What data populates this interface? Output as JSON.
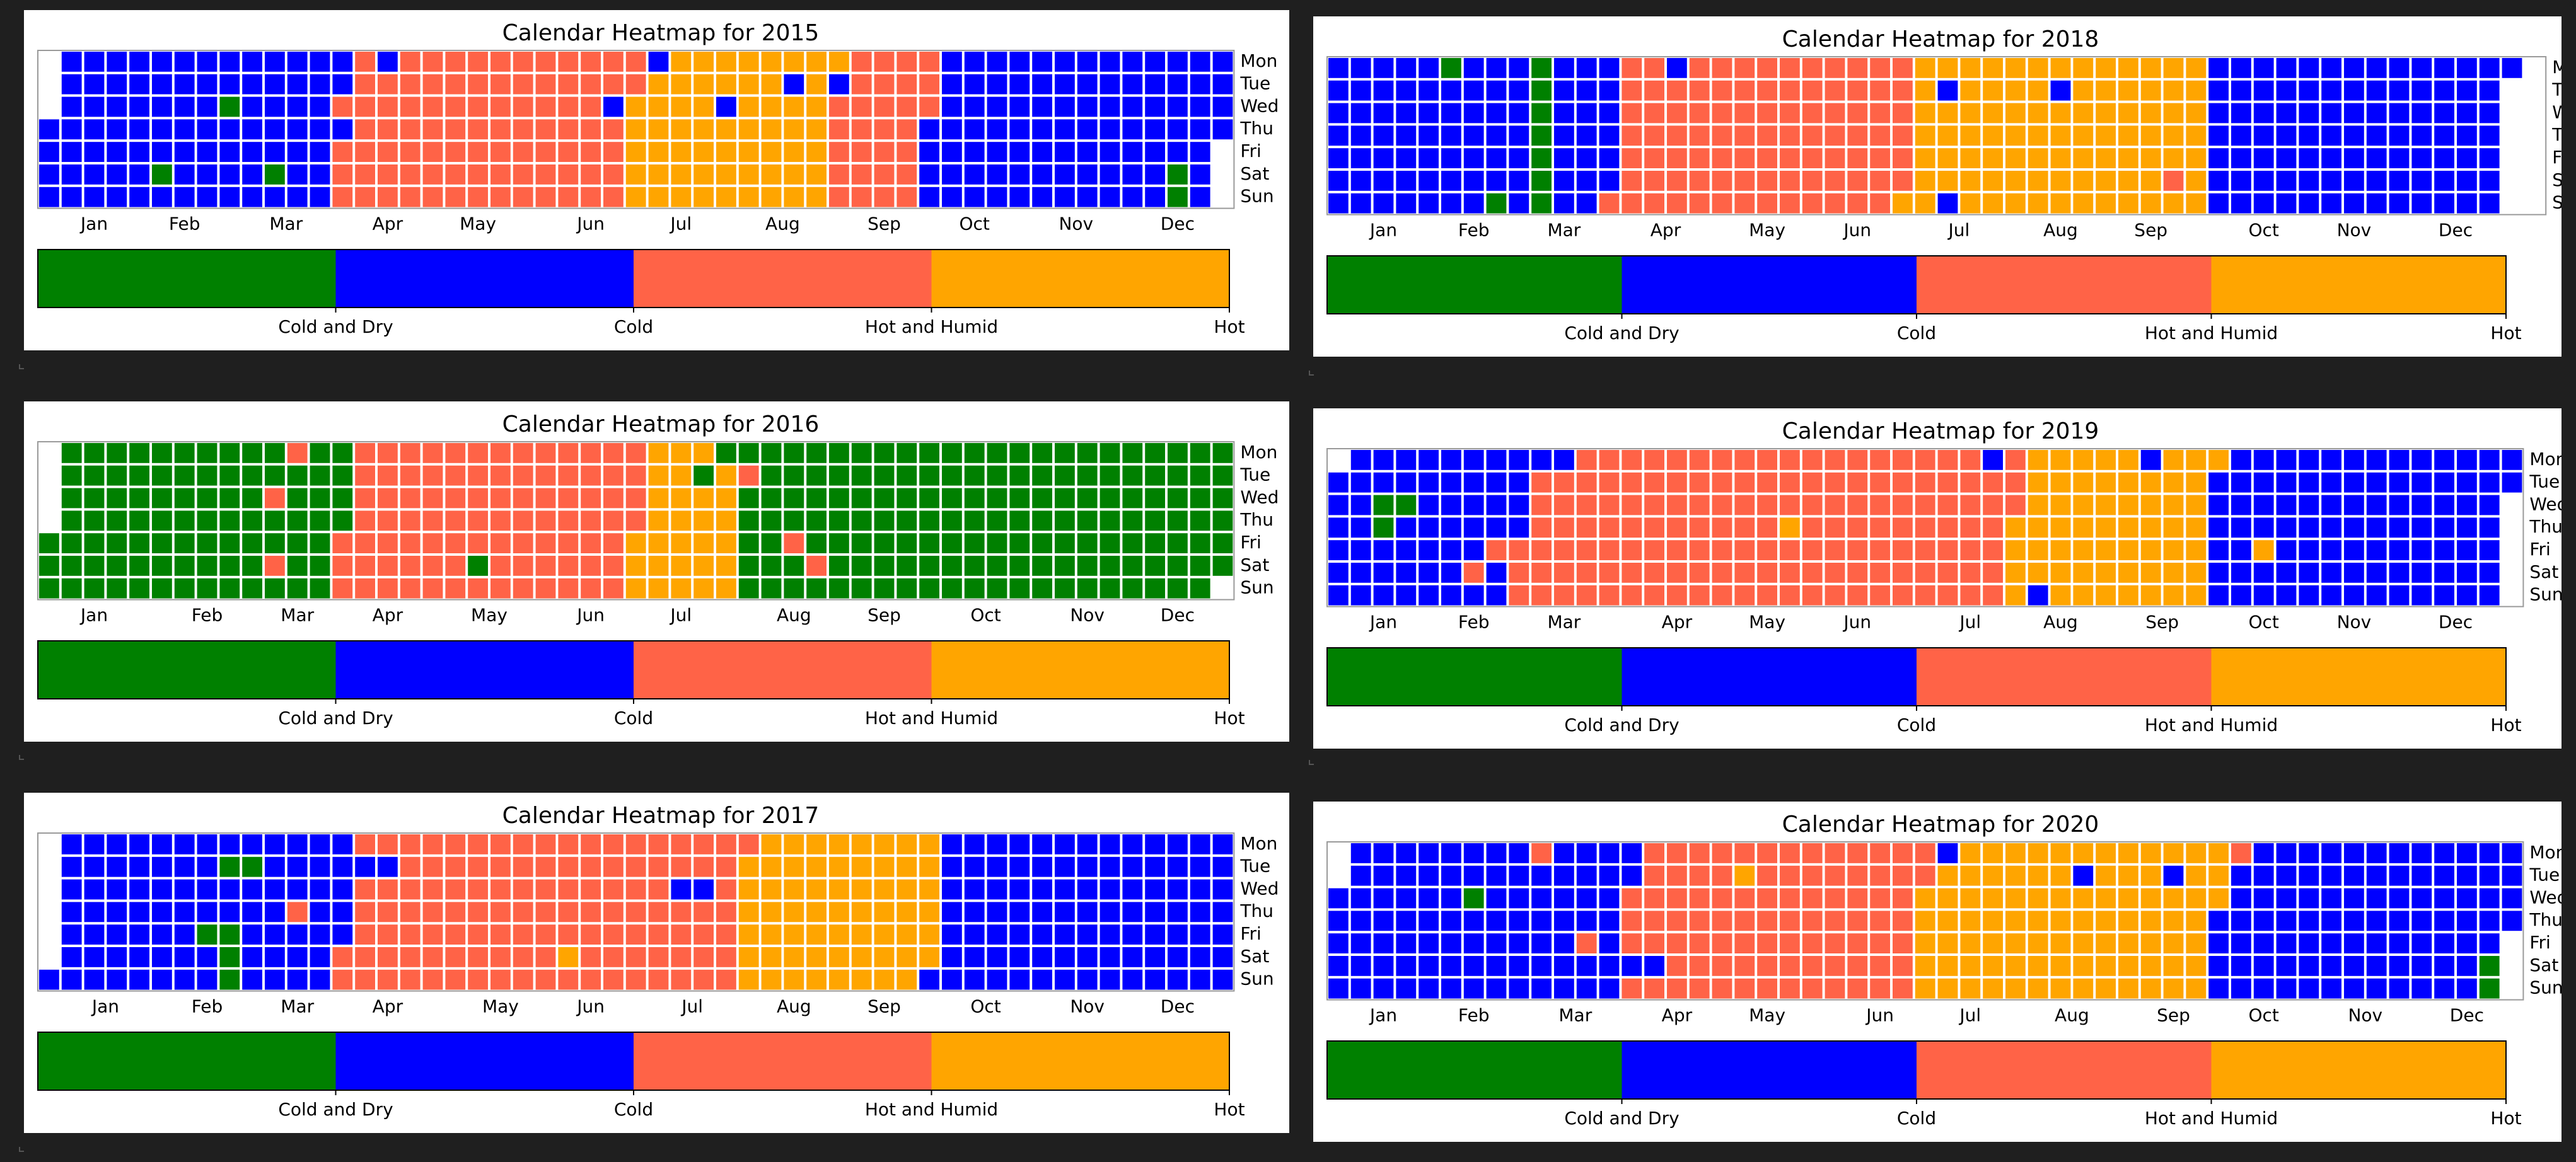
{
  "legend": {
    "categories": [
      "Cold and Dry",
      "Cold",
      "Hot and Humid",
      "Hot"
    ],
    "colors": {
      "Cold and Dry": "#008000",
      "Cold": "#0000ff",
      "Hot and Humid": "#ff6347",
      "Hot": "#ffa500"
    },
    "codes": {
      "G": "Cold and Dry",
      "B": "Cold",
      "R": "Hot and Humid",
      "O": "Hot"
    }
  },
  "day_labels": [
    "Mon",
    "Tue",
    "Wed",
    "Thu",
    "Fri",
    "Sat",
    "Sun"
  ],
  "month_labels": [
    "Jan",
    "Feb",
    "Mar",
    "Apr",
    "May",
    "Jun",
    "Jul",
    "Aug",
    "Sep",
    "Oct",
    "Nov",
    "Dec"
  ],
  "colorbar_tick_labels": [
    "Cold and Dry",
    "Cold",
    "Hot and Humid",
    "Hot"
  ],
  "chart_data": [
    {
      "type": "heatmap",
      "title": "Calendar Heatmap for 2015",
      "year": 2015,
      "legend_position": "bottom",
      "rows": [
        "Mon",
        "Tue",
        "Wed",
        "Thu",
        "Fri",
        "Sat",
        "Sun"
      ],
      "week_columns": 53,
      "first_weekday_row": 3,
      "weeks_start": 1,
      "monthly_states": [
        "B",
        "B",
        "B",
        "R",
        "R",
        "R",
        "O",
        "O",
        "R",
        "B",
        "B",
        "B"
      ],
      "overrides": [
        [
          "2015-02-25",
          "G"
        ],
        [
          "2015-02-07",
          "G"
        ],
        [
          "2015-03-14",
          "G"
        ],
        [
          "2015-12-19",
          "G"
        ],
        [
          "2015-12-20",
          "G"
        ],
        [
          "2015-04-02",
          "B"
        ],
        [
          "2015-04-13",
          "B"
        ],
        [
          "2015-06-24",
          "B"
        ],
        [
          "2015-07-06",
          "B"
        ],
        [
          "2015-07-29",
          "B"
        ],
        [
          "2015-08-18",
          "B"
        ],
        [
          "2015-09-01",
          "B"
        ]
      ]
    },
    {
      "type": "heatmap",
      "title": "Calendar Heatmap for 2016",
      "year": 2016,
      "legend_position": "bottom",
      "rows": [
        "Mon",
        "Tue",
        "Wed",
        "Thu",
        "Fri",
        "Sat",
        "Sun"
      ],
      "week_columns": 53,
      "first_weekday_row": 4,
      "weeks_start": 1,
      "monthly_states": [
        "G",
        "G",
        "G",
        "R",
        "R",
        "R",
        "O",
        "G",
        "G",
        "G",
        "G",
        "G"
      ],
      "overrides": [
        [
          "2016-03-09",
          "R"
        ],
        [
          "2016-03-12",
          "R"
        ],
        [
          "2016-03-14",
          "R"
        ],
        [
          "2016-05-14",
          "G"
        ],
        [
          "2016-08-02",
          "R"
        ],
        [
          "2016-08-19",
          "R"
        ],
        [
          "2016-08-27",
          "R"
        ],
        [
          "2016-07-25",
          "G"
        ],
        [
          "2016-07-19",
          "G"
        ]
      ]
    },
    {
      "type": "heatmap",
      "title": "Calendar Heatmap for 2017",
      "year": 2017,
      "legend_position": "bottom",
      "rows": [
        "Mon",
        "Tue",
        "Wed",
        "Thu",
        "Fri",
        "Sat",
        "Sun"
      ],
      "week_columns": 53,
      "first_weekday_row": 6,
      "weeks_start": 1,
      "monthly_states": [
        "B",
        "B",
        "B",
        "R",
        "R",
        "R",
        "R",
        "O",
        "O",
        "B",
        "B",
        "B"
      ],
      "overrides": [
        [
          "2017-02-21",
          "G"
        ],
        [
          "2017-02-28",
          "G"
        ],
        [
          "2017-02-17",
          "G"
        ],
        [
          "2017-02-24",
          "G"
        ],
        [
          "2017-02-25",
          "G"
        ],
        [
          "2017-02-26",
          "G"
        ],
        [
          "2017-03-16",
          "R"
        ],
        [
          "2017-04-04",
          "B"
        ],
        [
          "2017-04-11",
          "B"
        ],
        [
          "2017-06-10",
          "O"
        ],
        [
          "2017-07-12",
          "B"
        ],
        [
          "2017-07-19",
          "B"
        ]
      ]
    },
    {
      "type": "heatmap",
      "title": "Calendar Heatmap for 2018",
      "year": 2018,
      "legend_position": "bottom",
      "rows": [
        "Mon",
        "Tue",
        "Wed",
        "Thu",
        "Fri",
        "Sat",
        "Sun"
      ],
      "week_columns": 54,
      "first_weekday_row": 0,
      "weeks_start": 1,
      "monthly_states": [
        "B",
        "B",
        "B",
        "R",
        "R",
        "R",
        "O",
        "O",
        "O",
        "B",
        "B",
        "B"
      ],
      "overrides": [
        [
          "2018-02-05",
          "G"
        ],
        [
          "2018-03-05",
          "G"
        ],
        [
          "2018-02-25",
          "G"
        ],
        [
          "2018-03-06",
          "G"
        ],
        [
          "2018-03-07",
          "G"
        ],
        [
          "2018-03-08",
          "G"
        ],
        [
          "2018-03-09",
          "G"
        ],
        [
          "2018-03-10",
          "G"
        ],
        [
          "2018-03-11",
          "G"
        ],
        [
          "2018-04-16",
          "B"
        ],
        [
          "2018-07-10",
          "B"
        ],
        [
          "2018-07-15",
          "B"
        ],
        [
          "2018-08-14",
          "B"
        ],
        [
          "2018-09-22",
          "R"
        ],
        [
          "2018-12-31",
          "B"
        ]
      ]
    },
    {
      "type": "heatmap",
      "title": "Calendar Heatmap for 2019",
      "year": 2019,
      "legend_position": "bottom",
      "rows": [
        "Mon",
        "Tue",
        "Wed",
        "Thu",
        "Fri",
        "Sat",
        "Sun"
      ],
      "week_columns": 53,
      "first_weekday_row": 1,
      "weeks_start": 1,
      "monthly_states": [
        "B",
        "B",
        "R",
        "R",
        "R",
        "R",
        "R",
        "O",
        "O",
        "B",
        "B",
        "B"
      ],
      "overrides": [
        [
          "2019-01-16",
          "G"
        ],
        [
          "2019-01-17",
          "G"
        ],
        [
          "2019-01-23",
          "G"
        ],
        [
          "2019-02-22",
          "R"
        ],
        [
          "2019-02-16",
          "R"
        ],
        [
          "2019-03-04",
          "B"
        ],
        [
          "2019-03-11",
          "B"
        ],
        [
          "2019-05-23",
          "O"
        ],
        [
          "2019-07-22",
          "B"
        ],
        [
          "2019-08-11",
          "B"
        ],
        [
          "2019-09-09",
          "B"
        ],
        [
          "2019-10-18",
          "O"
        ]
      ]
    },
    {
      "type": "heatmap",
      "title": "Calendar Heatmap for 2020",
      "year": 2020,
      "legend_position": "bottom",
      "rows": [
        "Mon",
        "Tue",
        "Wed",
        "Thu",
        "Fri",
        "Sat",
        "Sun"
      ],
      "week_columns": 53,
      "first_weekday_row": 2,
      "weeks_start": 1,
      "monthly_states": [
        "B",
        "B",
        "B",
        "R",
        "R",
        "R",
        "O",
        "O",
        "O",
        "B",
        "B",
        "B"
      ],
      "overrides": [
        [
          "2020-02-12",
          "G"
        ],
        [
          "2020-12-26",
          "G"
        ],
        [
          "2020-12-27",
          "G"
        ],
        [
          "2020-03-02",
          "R"
        ],
        [
          "2020-03-20",
          "R"
        ],
        [
          "2020-04-04",
          "B"
        ],
        [
          "2020-04-11",
          "B"
        ],
        [
          "2020-05-05",
          "O"
        ],
        [
          "2020-07-06",
          "B"
        ],
        [
          "2020-08-18",
          "B"
        ],
        [
          "2020-09-15",
          "B"
        ],
        [
          "2020-10-05",
          "R"
        ]
      ]
    }
  ]
}
